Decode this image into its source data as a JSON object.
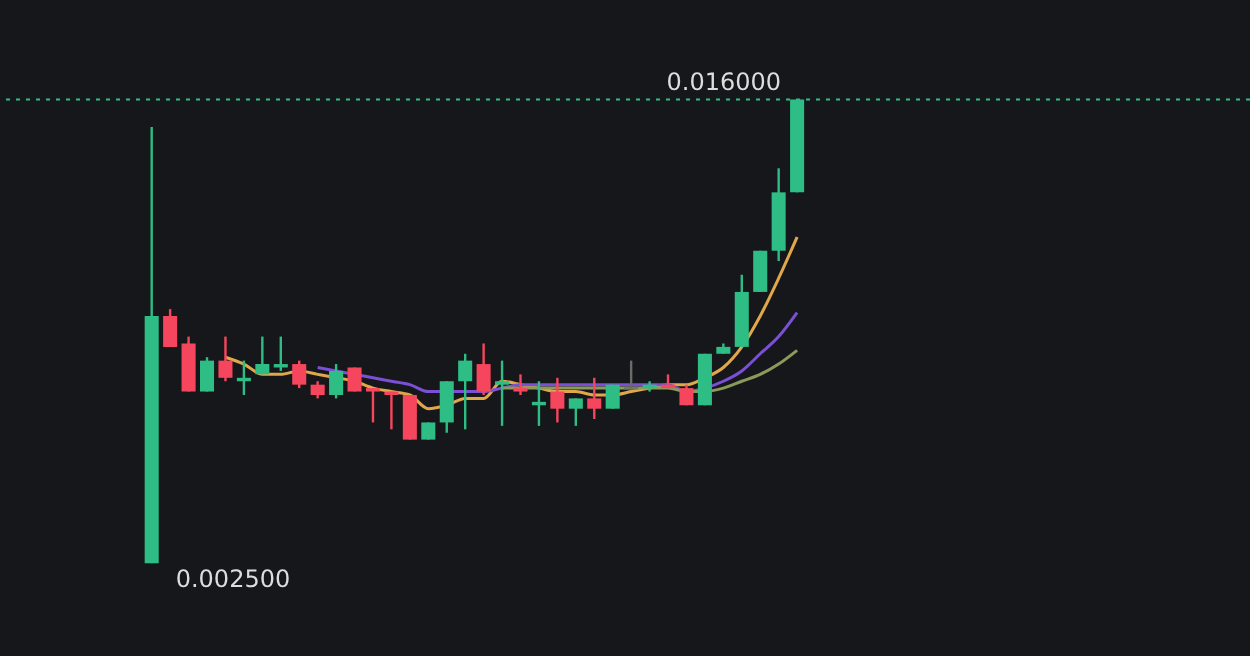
{
  "chart_data": {
    "type": "candlestick",
    "categories": [
      null,
      null,
      null,
      null,
      null,
      null,
      null,
      null,
      null,
      null,
      null,
      null,
      null,
      null,
      null,
      null,
      null,
      null,
      null,
      null,
      null,
      null,
      null,
      null,
      null,
      null,
      null,
      null,
      null,
      null,
      null,
      null,
      null,
      null,
      null,
      null
    ],
    "ohlc": [
      [
        0.0025,
        0.0152,
        0.0025,
        0.0097
      ],
      [
        0.0097,
        0.0099,
        0.0088,
        0.0088
      ],
      [
        0.0089,
        0.0091,
        0.0075,
        0.0075
      ],
      [
        0.0075,
        0.0085,
        0.0075,
        0.0084
      ],
      [
        0.0084,
        0.0091,
        0.0078,
        0.0079
      ],
      [
        0.0078,
        0.0084,
        0.0074,
        0.0079
      ],
      [
        0.008,
        0.0091,
        0.008,
        0.0083
      ],
      [
        0.0082,
        0.0091,
        0.0081,
        0.0083
      ],
      [
        0.0083,
        0.0084,
        0.0076,
        0.0077
      ],
      [
        0.0077,
        0.0078,
        0.0073,
        0.0074
      ],
      [
        0.0074,
        0.0083,
        0.0073,
        0.0081
      ],
      [
        0.0082,
        0.0082,
        0.0075,
        0.0075
      ],
      [
        0.0076,
        0.0076,
        0.0066,
        0.0075
      ],
      [
        0.0075,
        0.0075,
        0.0064,
        0.0074
      ],
      [
        0.0074,
        0.0074,
        0.0061,
        0.0061
      ],
      [
        0.0061,
        0.0066,
        0.0061,
        0.0066
      ],
      [
        0.0066,
        0.0078,
        0.0063,
        0.0078
      ],
      [
        0.0078,
        0.0086,
        0.0064,
        0.0084
      ],
      [
        0.0083,
        0.0089,
        0.0074,
        0.0075
      ],
      [
        0.0077,
        0.0084,
        0.0065,
        0.0078
      ],
      [
        0.0076,
        0.008,
        0.0074,
        0.0075
      ],
      [
        0.0071,
        0.0078,
        0.0065,
        0.0072
      ],
      [
        0.0075,
        0.0079,
        0.0066,
        0.007
      ],
      [
        0.007,
        0.0073,
        0.0065,
        0.0073
      ],
      [
        0.0073,
        0.0079,
        0.0067,
        0.007
      ],
      [
        0.007,
        0.0077,
        0.007,
        0.0077
      ],
      [
        0.0076,
        0.0084,
        0.0076,
        0.0076
      ],
      [
        0.0076,
        0.0078,
        0.0075,
        0.0077
      ],
      [
        0.0077,
        0.008,
        0.0076,
        0.0076
      ],
      [
        0.0076,
        0.0077,
        0.0071,
        0.0071
      ],
      [
        0.0071,
        0.0086,
        0.0071,
        0.0086
      ],
      [
        0.0086,
        0.0089,
        0.0086,
        0.0088
      ],
      [
        0.0088,
        0.0109,
        0.0088,
        0.0104
      ],
      [
        0.0104,
        0.0116,
        0.0104,
        0.0116
      ],
      [
        0.0116,
        0.014,
        0.0113,
        0.0133
      ],
      [
        0.0133,
        0.016,
        0.0133,
        0.016
      ]
    ],
    "colors": [
      "#2ebd85",
      "#f6465d",
      "#f6465d",
      "#2ebd85",
      "#f6465d",
      "#2ebd85",
      "#2ebd85",
      "#2ebd85",
      "#f6465d",
      "#f6465d",
      "#2ebd85",
      "#f6465d",
      "#f6465d",
      "#f6465d",
      "#f6465d",
      "#2ebd85",
      "#2ebd85",
      "#2ebd85",
      "#f6465d",
      "#2ebd85",
      "#f6465d",
      "#2ebd85",
      "#f6465d",
      "#2ebd85",
      "#f6465d",
      "#2ebd85",
      "#6b6b6b",
      "#2ebd85",
      "#f6465d",
      "#f6465d",
      "#2ebd85",
      "#2ebd85",
      "#2ebd85",
      "#2ebd85",
      "#2ebd85",
      "#2ebd85"
    ],
    "series": [
      {
        "type": "line",
        "color": "#e0a84a",
        "values": [
          null,
          null,
          null,
          null,
          0.0085,
          0.0083,
          0.008,
          0.008,
          0.0081,
          0.008,
          0.0079,
          0.0078,
          0.0076,
          0.0075,
          0.0074,
          0.007,
          0.0071,
          0.0073,
          0.0073,
          0.0078,
          0.0077,
          0.0076,
          0.0075,
          0.0075,
          0.0074,
          0.0074,
          0.0075,
          0.0076,
          0.0077,
          0.0077,
          0.0079,
          0.0082,
          0.0088,
          0.0097,
          0.0108,
          0.012
        ]
      },
      {
        "type": "line",
        "color": "#7b4fd6",
        "values": [
          null,
          null,
          null,
          null,
          null,
          null,
          null,
          null,
          null,
          0.0082,
          0.0081,
          0.008,
          0.0079,
          0.0078,
          0.0077,
          0.0075,
          0.0075,
          0.0075,
          0.0075,
          0.0076,
          0.0077,
          0.0077,
          0.0077,
          0.0077,
          0.0077,
          0.0077,
          0.0077,
          0.0077,
          0.0077,
          0.0075,
          0.0076,
          0.0078,
          0.0081,
          0.0086,
          0.0091,
          0.0098
        ]
      },
      {
        "type": "line",
        "color": "#8a9a5b",
        "values": [
          null,
          null,
          null,
          null,
          null,
          null,
          null,
          null,
          null,
          null,
          null,
          null,
          null,
          null,
          null,
          null,
          null,
          null,
          null,
          0.0076,
          0.0076,
          0.0076,
          0.0076,
          0.0076,
          0.0076,
          0.0076,
          0.0076,
          0.0076,
          0.0076,
          0.0075,
          0.0075,
          0.0076,
          0.0078,
          0.008,
          0.0083,
          0.0087
        ]
      }
    ],
    "ylim": [
      -0.0002,
      0.0189
    ],
    "ref_lines": [
      {
        "axis": "y",
        "value": 0.016,
        "label": "0.016000",
        "color": "#2ebd85",
        "line_style": "dotted"
      }
    ],
    "annotations": [
      "0.002500"
    ]
  }
}
